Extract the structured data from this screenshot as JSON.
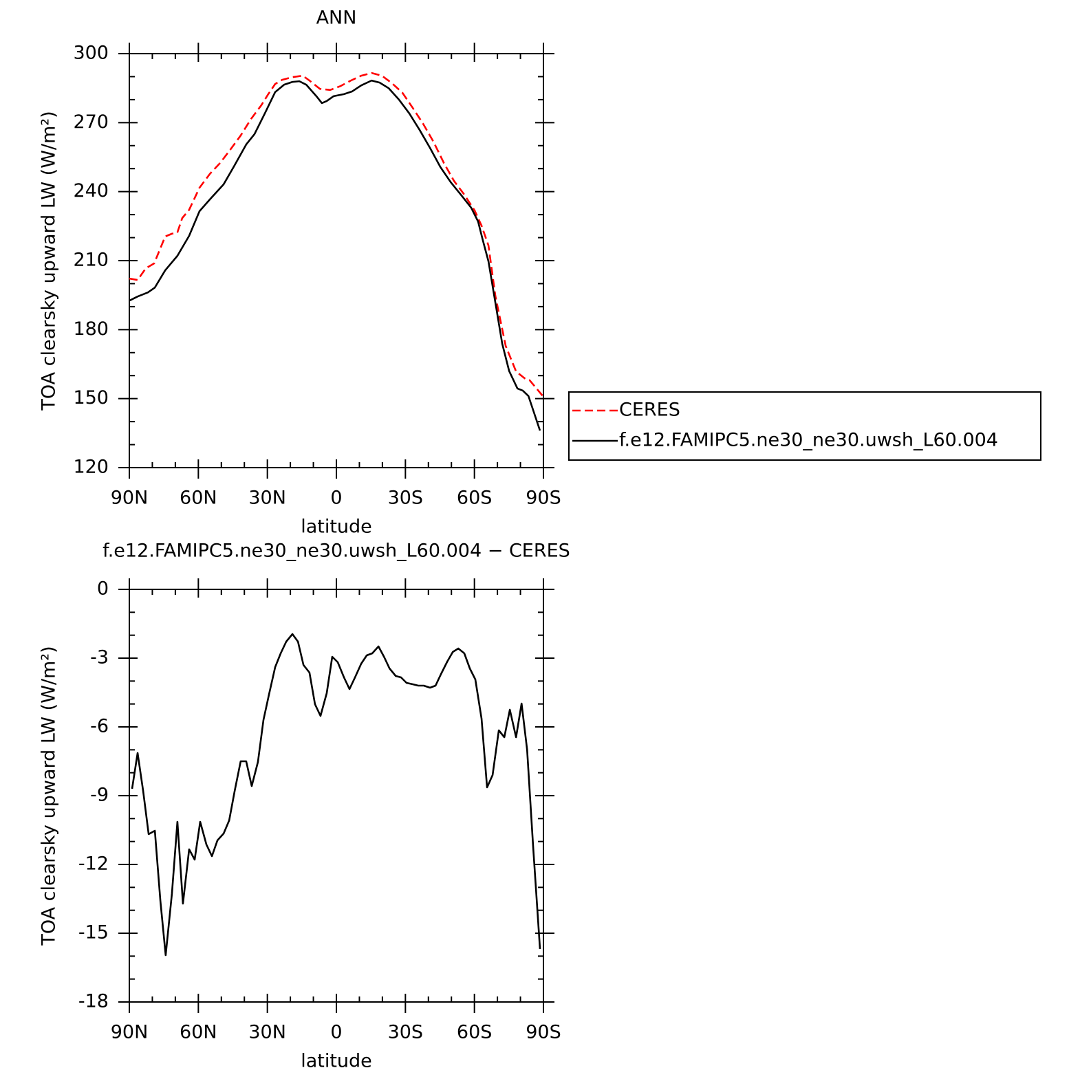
{
  "chart_data": [
    {
      "type": "line",
      "title": "ANN",
      "x_label": "latitude",
      "y_label": "TOA clearsky upward LW (W/m²)",
      "xlim": [
        90,
        -90
      ],
      "xticks": [
        {
          "value": 90,
          "label": "90N"
        },
        {
          "value": 60,
          "label": "60N"
        },
        {
          "value": 30,
          "label": "30N"
        },
        0,
        {
          "value": -30,
          "label": "30S"
        },
        {
          "value": -60,
          "label": "60S"
        },
        {
          "value": -90,
          "label": "90S"
        }
      ],
      "xminorticks": [
        80,
        70,
        50,
        40,
        20,
        10,
        -10,
        -20,
        -40,
        -50,
        -70,
        -80
      ],
      "ylim": [
        120,
        300
      ],
      "yticks": [
        120,
        150,
        180,
        210,
        240,
        270,
        300
      ],
      "yminorticks": [
        130,
        140,
        160,
        170,
        190,
        200,
        220,
        230,
        250,
        260,
        280,
        290
      ],
      "legend": "right",
      "series": [
        {
          "name": "CERES",
          "color": "#ff0000",
          "line_style": "dashed",
          "x": [
            90,
            86.4,
            82.8,
            79.2,
            74.4,
            71.5,
            69.1,
            67,
            64,
            59.5,
            55,
            50.5,
            46,
            41.6,
            37.1,
            32.6,
            29.6,
            26.6,
            23.6,
            19.1,
            14.6,
            11.7,
            7.2,
            2.7,
            -1.8,
            -6.3,
            -10.8,
            -15.3,
            -19.8,
            -24.2,
            -28.7,
            -33.2,
            -37.7,
            -42.2,
            -46.7,
            -51.1,
            -55.6,
            -60.1,
            -63.1,
            -66.1,
            -69.1,
            -73.6,
            -78.1,
            -82.5,
            -84,
            -90
          ],
          "values": [
            202.2,
            201.6,
            206.7,
            208.8,
            220.5,
            221.7,
            222.3,
            228.5,
            232.1,
            241.7,
            247.7,
            252.5,
            258.4,
            264.4,
            271.6,
            277.6,
            282.4,
            286.8,
            288.6,
            289.8,
            290.4,
            288.3,
            284.7,
            284.2,
            285.9,
            288.3,
            290.4,
            291.6,
            290.4,
            287.1,
            283,
            276.4,
            269.5,
            261.7,
            252.5,
            244.7,
            238.7,
            231.8,
            225.2,
            216.6,
            194.7,
            172.9,
            161.8,
            158.3,
            158,
            150.8
          ]
        },
        {
          "name": "f.e12.FAMIPC5.ne30_ne30.uwsh_L60.004",
          "color": "#000000",
          "line_style": "solid",
          "x": [
            90,
            86.4,
            81.9,
            78.9,
            74.4,
            69.1,
            64,
            59.5,
            55,
            49,
            44.5,
            39.2,
            35.6,
            31.1,
            26.6,
            22.7,
            19.1,
            16.1,
            13.1,
            8.7,
            6.3,
            4.2,
            1.2,
            -3.3,
            -6.9,
            -10.8,
            -15.3,
            -18.8,
            -22.7,
            -27.2,
            -31.7,
            -36.2,
            -40.7,
            -45.2,
            -49.7,
            -54.1,
            -58.6,
            -61.6,
            -63.7,
            -66.1,
            -69.1,
            -72.1,
            -75.1,
            -78.7,
            -81,
            -83.5,
            -88.5
          ],
          "values": [
            192.6,
            194.4,
            196.2,
            198.3,
            205.8,
            212.1,
            220.8,
            231.5,
            236.6,
            243.2,
            251,
            260.5,
            265,
            274,
            283.3,
            286.5,
            287.7,
            288,
            286.5,
            281.5,
            278.5,
            279.4,
            281.5,
            282.4,
            283.6,
            286.2,
            288.3,
            287.4,
            285,
            280,
            274,
            266.8,
            259,
            250.7,
            244.1,
            238.7,
            233,
            227,
            218.7,
            209.7,
            191.8,
            173.8,
            162,
            154.4,
            153.5,
            151.1,
            136.1
          ]
        }
      ]
    },
    {
      "type": "line",
      "title": "f.e12.FAMIPC5.ne30_ne30.uwsh_L60.004 − CERES",
      "x_label": "latitude",
      "y_label": "TOA clearsky upward LW (W/m²)",
      "xlim": [
        90,
        -90
      ],
      "xticks": [
        {
          "value": 90,
          "label": "90N"
        },
        {
          "value": 60,
          "label": "60N"
        },
        {
          "value": 30,
          "label": "30N"
        },
        0,
        {
          "value": -30,
          "label": "30S"
        },
        {
          "value": -60,
          "label": "60S"
        },
        {
          "value": -90,
          "label": "90S"
        }
      ],
      "xminorticks": [
        80,
        70,
        50,
        40,
        20,
        10,
        -10,
        -20,
        -40,
        -50,
        -70,
        -80
      ],
      "ylim": [
        -18,
        0
      ],
      "yticks": [
        -18,
        -15,
        -12,
        -9,
        -6,
        -3,
        0
      ],
      "yminorticks": [
        -17,
        -16,
        -14,
        -13,
        -11,
        -10,
        -8,
        -7,
        -5,
        -4,
        -2,
        -1
      ],
      "series": [
        {
          "color": "#000000",
          "line_style": "solid",
          "x": [
            88.8,
            86.4,
            84,
            81.6,
            78.9,
            76.5,
            74.2,
            71.5,
            69.1,
            66.7,
            64,
            61.6,
            59.2,
            56.5,
            54.1,
            51.7,
            49,
            46.6,
            44.2,
            41.6,
            39.2,
            36.8,
            34.1,
            31.7,
            29.3,
            26.6,
            24.2,
            21.8,
            19.1,
            16.7,
            14.3,
            11.7,
            9.3,
            6.9,
            4.2,
            1.8,
            -0.6,
            -3.3,
            -5.7,
            -8.1,
            -10.8,
            -13.2,
            -15.6,
            -18.3,
            -20.7,
            -23.1,
            -25.8,
            -28.1,
            -30.5,
            -33.2,
            -35.6,
            -38,
            -40.7,
            -43.1,
            -45.5,
            -48.2,
            -50.6,
            -53,
            -55.6,
            -58,
            -60.4,
            -63.1,
            -65.5,
            -67.9,
            -70.6,
            -73,
            -75.4,
            -78.1,
            -80.5,
            -82.9,
            -85.5,
            -88.5
          ],
          "values": [
            -8.7,
            -7.14,
            -8.79,
            -10.68,
            -10.53,
            -13.59,
            -15.96,
            -13.29,
            -10.14,
            -13.71,
            -11.34,
            -11.79,
            -10.14,
            -11.13,
            -11.64,
            -10.95,
            -10.65,
            -10.08,
            -8.79,
            -7.5,
            -7.5,
            -8.58,
            -7.53,
            -5.7,
            -4.59,
            -3.39,
            -2.79,
            -2.28,
            -1.95,
            -2.28,
            -3.3,
            -3.63,
            -5.01,
            -5.52,
            -4.53,
            -2.94,
            -3.18,
            -3.84,
            -4.35,
            -3.84,
            -3.24,
            -2.88,
            -2.79,
            -2.49,
            -2.94,
            -3.45,
            -3.78,
            -3.84,
            -4.08,
            -4.14,
            -4.2,
            -4.2,
            -4.29,
            -4.2,
            -3.69,
            -3.15,
            -2.73,
            -2.58,
            -2.79,
            -3.45,
            -3.93,
            -5.64,
            -8.64,
            -8.1,
            -6.15,
            -6.45,
            -5.25,
            -6.45,
            -4.98,
            -6.99,
            -11.19,
            -15.69
          ]
        }
      ]
    }
  ]
}
